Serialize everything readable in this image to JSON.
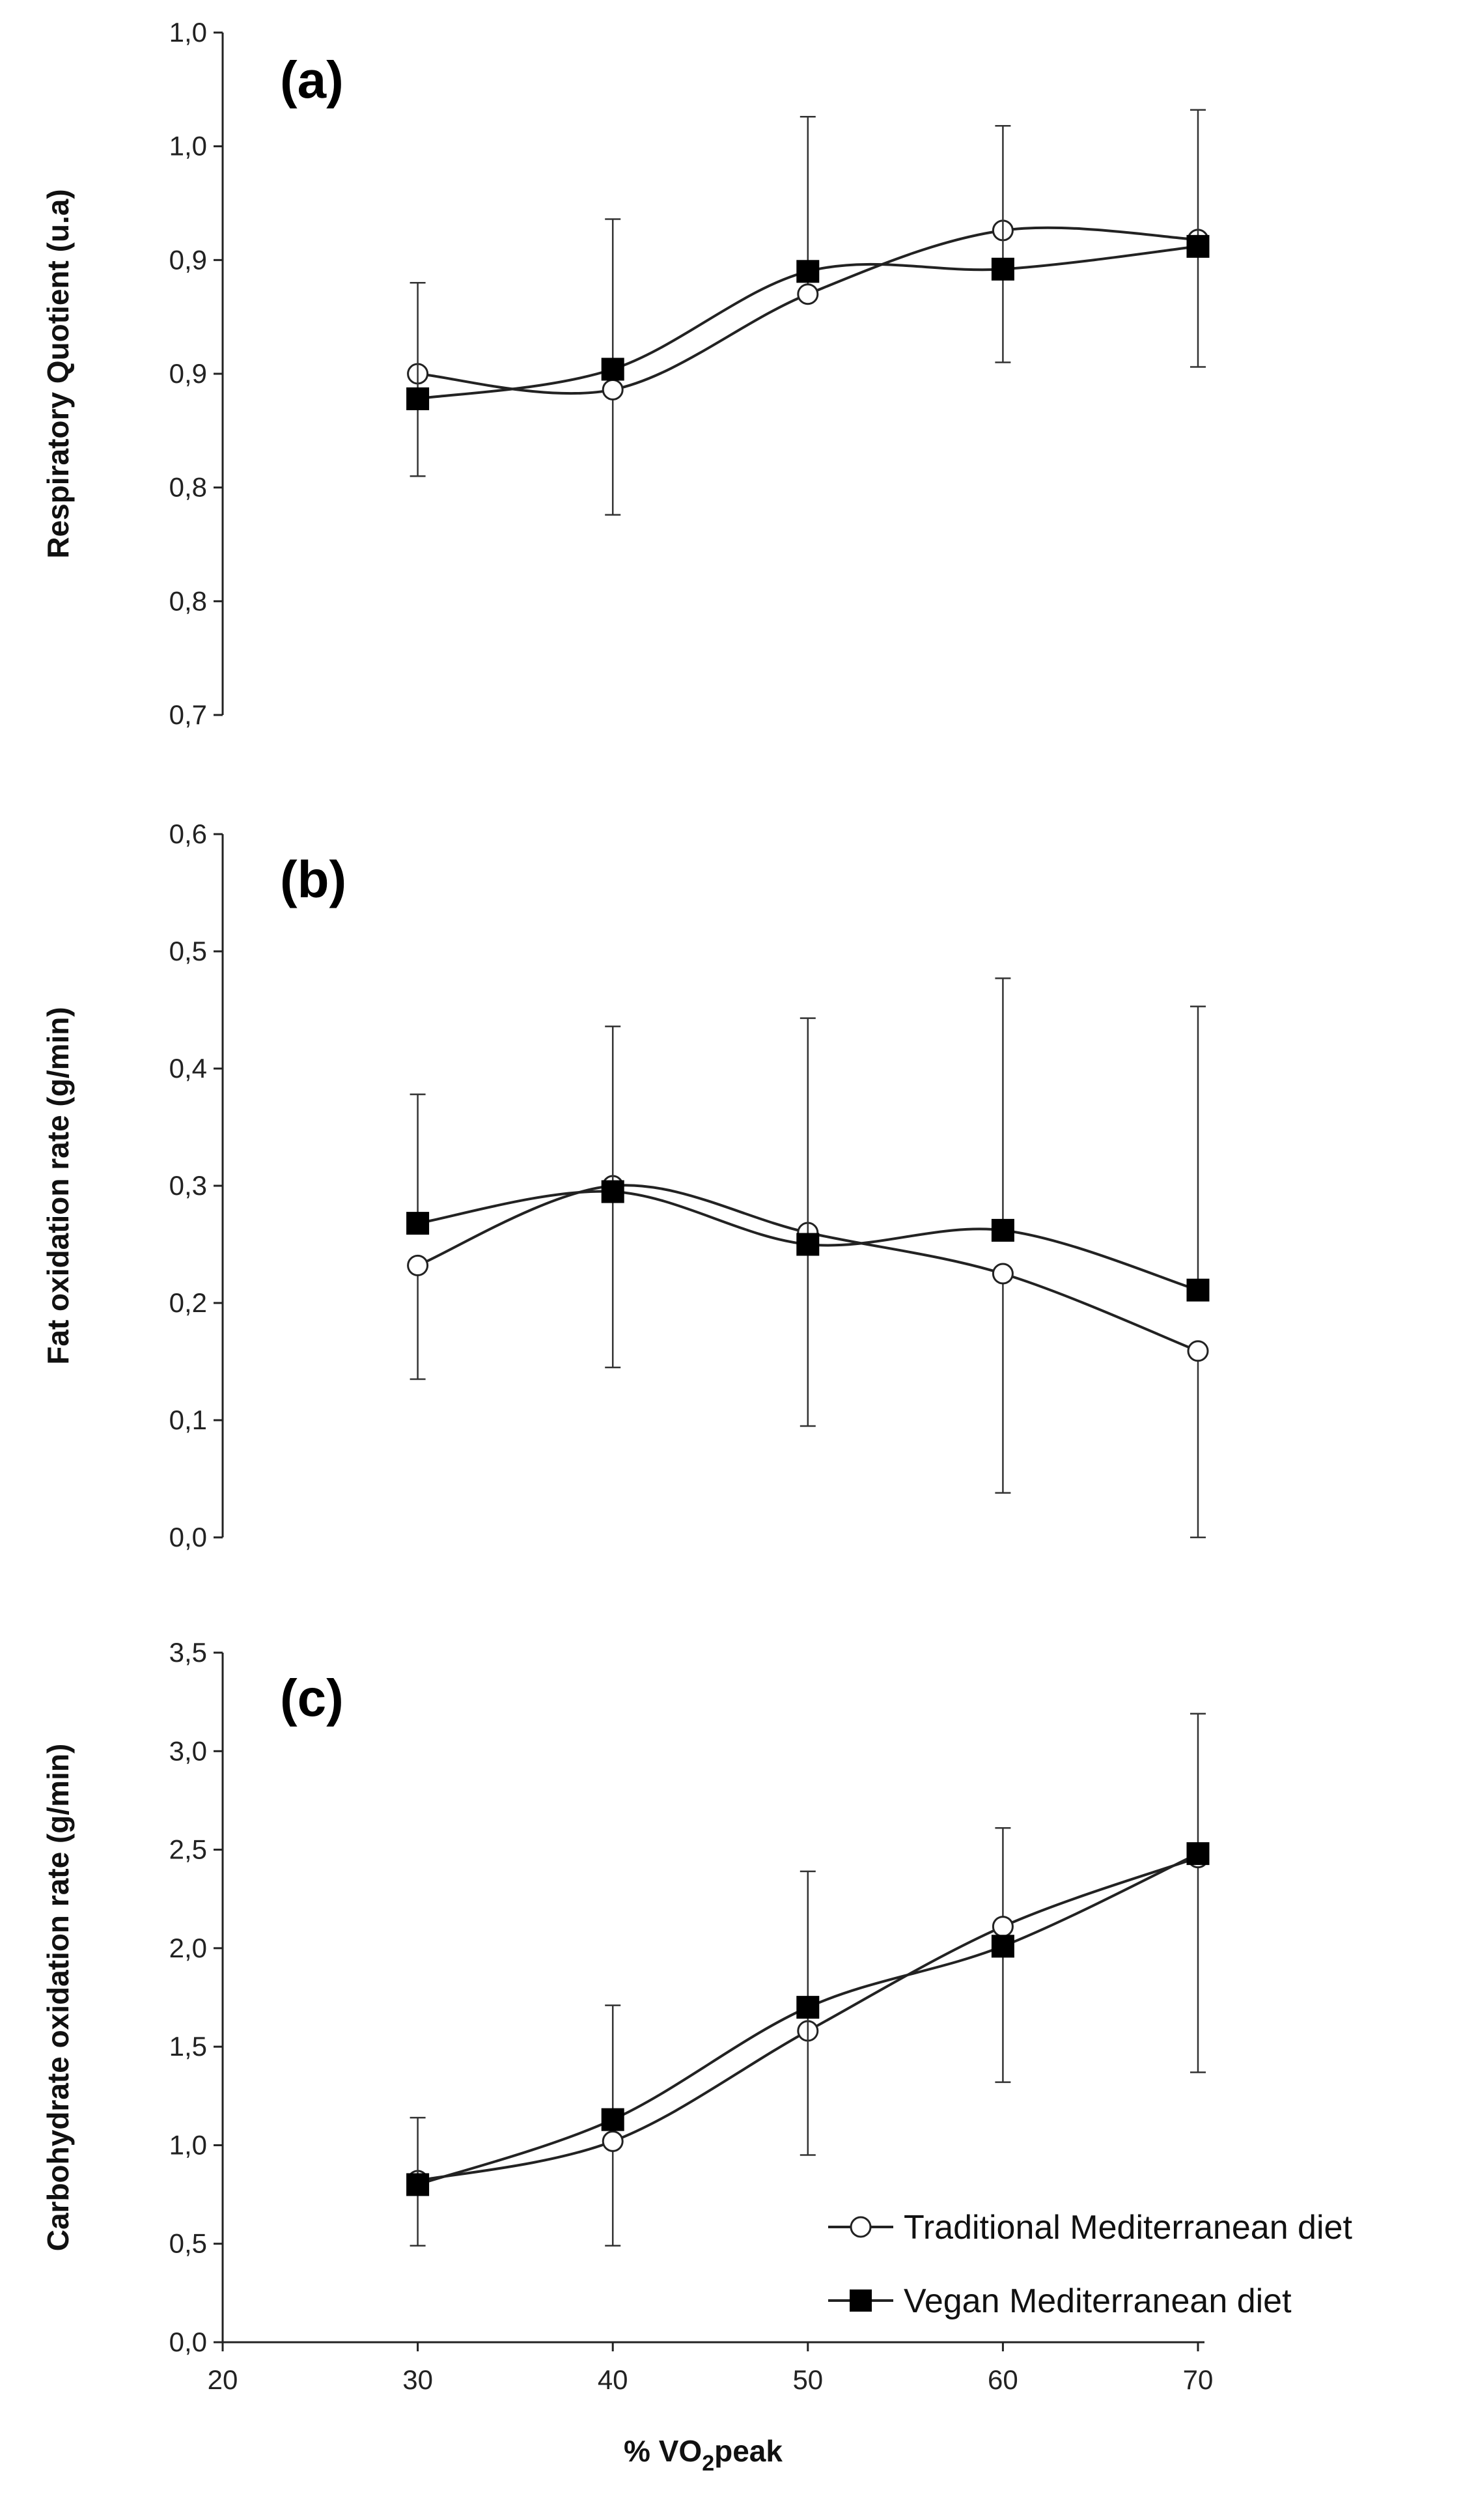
{
  "chart_data": [
    {
      "type": "line",
      "panel_label": "(a)",
      "ylabel": "Respiratory Quotient (u.a)",
      "xlabel": "",
      "x": [
        30,
        40,
        50,
        60,
        70
      ],
      "xlim": [
        20,
        70
      ],
      "ylim": [
        0.7,
        1.0
      ],
      "yticks": [
        0.7,
        0.75,
        0.8,
        0.85,
        0.9,
        0.95,
        1.0
      ],
      "ytick_labels": [
        "0,7",
        "0,8",
        "0,8",
        "0,9",
        "0,9",
        "1,0",
        "1,0"
      ],
      "show_x_ticklabels": false,
      "grid": false,
      "series": [
        {
          "name": "Traditional Mediterranean diet",
          "marker": "open-circle",
          "values": [
            0.85,
            0.843,
            0.885,
            0.913,
            0.909
          ],
          "err_lower": [
            0.0,
            0.055,
            0.0,
            0.0,
            0.0
          ],
          "err_upper": [
            0.0,
            0.0,
            0.078,
            0.0,
            0.0
          ]
        },
        {
          "name": "Vegan Mediterranean diet",
          "marker": "filled-square",
          "values": [
            0.839,
            0.852,
            0.895,
            0.896,
            0.906
          ],
          "err_lower": [
            0.034,
            0.0,
            0.0,
            0.041,
            0.053
          ],
          "err_upper": [
            0.051,
            0.066,
            0.0,
            0.063,
            0.06
          ]
        }
      ]
    },
    {
      "type": "line",
      "panel_label": "(b)",
      "ylabel": "Fat oxidation rate (g/min)",
      "xlabel": "",
      "x": [
        30,
        40,
        50,
        60,
        70
      ],
      "xlim": [
        20,
        70
      ],
      "ylim": [
        0.0,
        0.6
      ],
      "yticks": [
        0.0,
        0.1,
        0.2,
        0.3,
        0.4,
        0.5,
        0.6
      ],
      "ytick_labels": [
        "0,0",
        "0,1",
        "0,2",
        "0,3",
        "0,4",
        "0,5",
        "0,6"
      ],
      "show_x_ticklabels": false,
      "grid": false,
      "series": [
        {
          "name": "Traditional Mediterranean diet",
          "marker": "open-circle",
          "values": [
            0.232,
            0.3,
            0.26,
            0.225,
            0.159
          ],
          "err_lower": [
            0.097,
            0.155,
            0.0,
            0.187,
            0.159
          ],
          "err_upper": [
            0.0,
            0.0,
            0.0,
            0.0,
            0.0
          ]
        },
        {
          "name": "Vegan Mediterranean diet",
          "marker": "filled-square",
          "values": [
            0.268,
            0.295,
            0.25,
            0.262,
            0.211
          ],
          "err_lower": [
            0.0,
            0.0,
            0.155,
            0.0,
            0.0
          ],
          "err_upper": [
            0.11,
            0.141,
            0.193,
            0.215,
            0.242
          ]
        }
      ]
    },
    {
      "type": "line",
      "panel_label": "(c)",
      "ylabel": "Carbohydrate oxidation rate (g/min)",
      "xlabel": "% VO2peak",
      "xlabel_main": "% VO",
      "xlabel_sub": "2",
      "xlabel_tail": "peak",
      "x": [
        30,
        40,
        50,
        60,
        70
      ],
      "xlim": [
        20,
        70
      ],
      "ylim": [
        0.0,
        3.5
      ],
      "yticks": [
        0.0,
        0.5,
        1.0,
        1.5,
        2.0,
        2.5,
        3.0,
        3.5
      ],
      "ytick_labels": [
        "0,0",
        "0,5",
        "1,0",
        "1,5",
        "2,0",
        "2,5",
        "3,0",
        "3,5"
      ],
      "xticks": [
        20,
        30,
        40,
        50,
        60,
        70
      ],
      "xtick_labels": [
        "20",
        "30",
        "40",
        "50",
        "60",
        "70"
      ],
      "show_x_ticklabels": true,
      "grid": false,
      "legend_position": "bottom-right",
      "series": [
        {
          "name": "Traditional Mediterranean diet",
          "marker": "open-circle",
          "values": [
            0.82,
            1.02,
            1.58,
            2.11,
            2.46
          ],
          "err_lower": [
            0.33,
            0.53,
            0.0,
            0.0,
            1.09
          ],
          "err_upper": [
            0.0,
            0.0,
            0.0,
            0.5,
            0.0
          ]
        },
        {
          "name": "Vegan Mediterranean diet",
          "marker": "filled-square",
          "values": [
            0.8,
            1.13,
            1.7,
            2.01,
            2.48
          ],
          "err_lower": [
            0.0,
            0.0,
            0.75,
            0.69,
            0.0
          ],
          "err_upper": [
            0.34,
            0.58,
            0.69,
            0.0,
            0.71
          ]
        }
      ]
    }
  ],
  "legend": {
    "items": [
      {
        "label": "Traditional Mediterranean diet",
        "marker": "open-circle"
      },
      {
        "label": "Vegan Mediterranean diet",
        "marker": "filled-square"
      }
    ]
  },
  "colors": {
    "line": "#222222",
    "marker_fill_open": "#ffffff",
    "marker_fill_solid": "#000000",
    "errorbar": "#333333"
  }
}
